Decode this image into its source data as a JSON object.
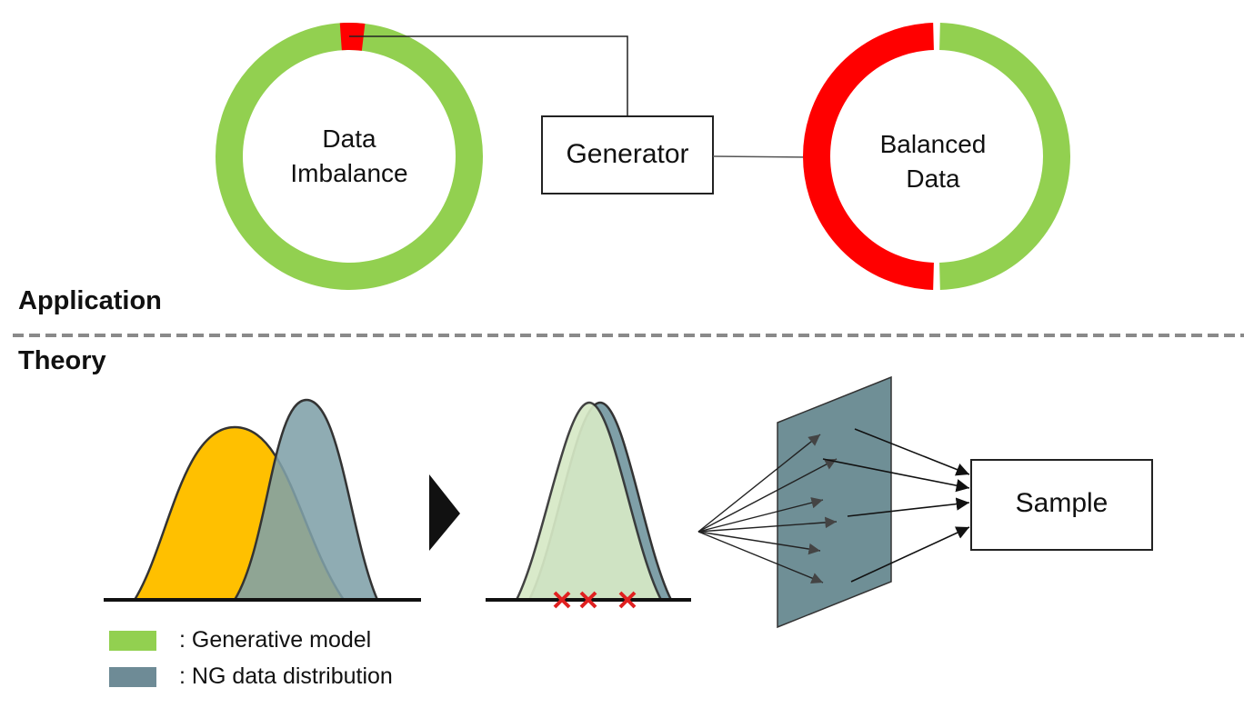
{
  "sections": {
    "application_label": "Application",
    "theory_label": "Theory"
  },
  "application": {
    "imbalanced_ring": {
      "line1": "Data",
      "line2": "Imbalance",
      "minority_fraction": 0.03
    },
    "generator_label": "Generator",
    "balanced_ring": {
      "line1": "Balanced",
      "line2": "Data",
      "minority_fraction": 0.5
    }
  },
  "theory": {
    "sample_label": "Sample",
    "rejected_marks_count": 3
  },
  "legend": [
    {
      "label": ": Generative model",
      "color": "#92d050"
    },
    {
      "label": ": NG data distribution",
      "color": "#6e8b96"
    }
  ],
  "colors": {
    "majority": "#92d050",
    "minority": "#ff0000",
    "gaussian_orange": "#ffc000",
    "gaussian_teal": "#7fa0a8",
    "gaussian_light_green": "#d6e9c6",
    "plane": "#6f8f96",
    "reject_mark": "#e02020"
  }
}
